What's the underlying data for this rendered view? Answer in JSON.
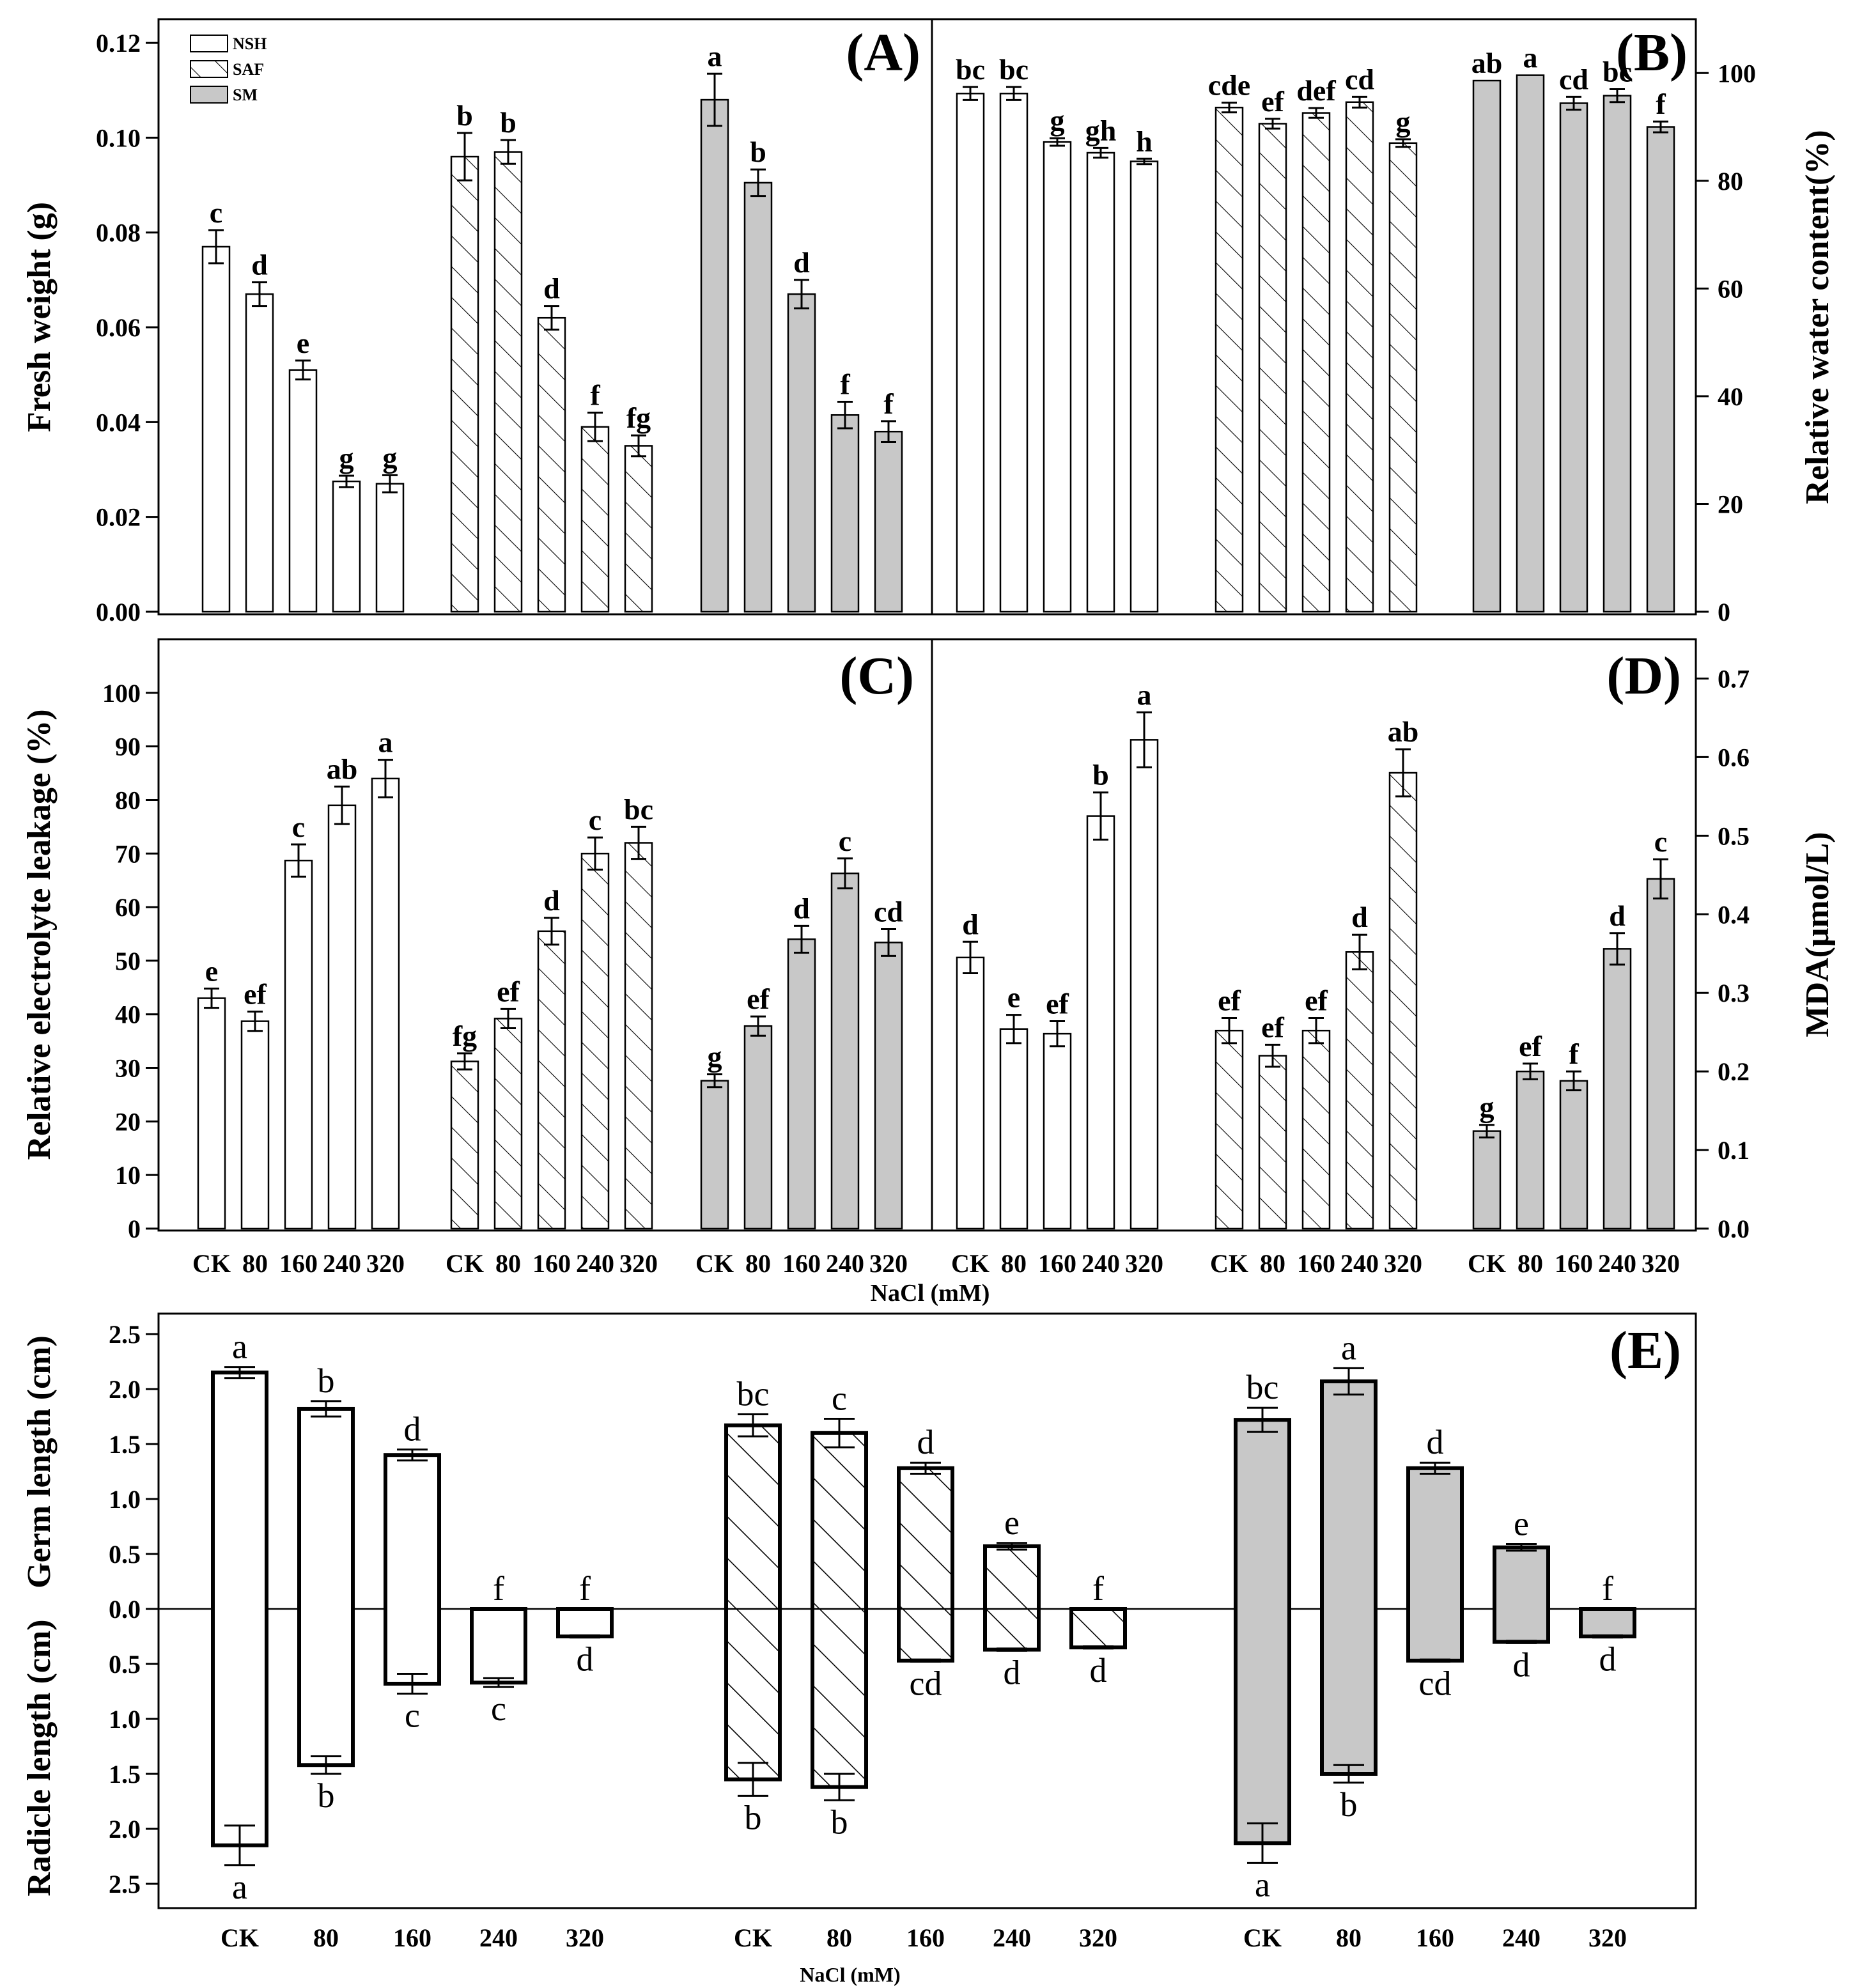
{
  "treatments": [
    "CK",
    "80",
    "160",
    "240",
    "320"
  ],
  "groups": [
    "NSH",
    "SAF",
    "SM"
  ],
  "legend": [
    "NSH",
    "SAF",
    "SM"
  ],
  "xlabel": "NaCl (mM)",
  "chart_data": [
    {
      "panel": "(A)",
      "type": "bar",
      "ylabel": "Fresh weight (g)",
      "ylim": [
        0,
        0.125
      ],
      "ticks": [
        "0.00",
        "0.02",
        "0.04",
        "0.06",
        "0.08",
        "0.10",
        "0.12"
      ],
      "series": [
        {
          "name": "NSH",
          "values": [
            0.077,
            0.067,
            0.051,
            0.0275,
            0.027
          ],
          "err": [
            0.0035,
            0.0025,
            0.002,
            0.0012,
            0.0018
          ],
          "sig": [
            "c",
            "d",
            "e",
            "g",
            "g"
          ]
        },
        {
          "name": "SAF",
          "values": [
            0.096,
            0.097,
            0.062,
            0.039,
            0.035
          ],
          "err": [
            0.005,
            0.0025,
            0.0025,
            0.003,
            0.0022
          ],
          "sig": [
            "b",
            "b",
            "d",
            "f",
            "fg"
          ]
        },
        {
          "name": "SM",
          "values": [
            0.108,
            0.0905,
            0.067,
            0.0415,
            0.038
          ],
          "err": [
            0.0055,
            0.0028,
            0.003,
            0.0028,
            0.0022
          ],
          "sig": [
            "a",
            "b",
            "d",
            "f",
            "f"
          ]
        }
      ]
    },
    {
      "panel": "(B)",
      "type": "bar",
      "ylabel": "Relative water content(%)",
      "ylim": [
        0,
        110
      ],
      "ticks": [
        "0",
        "20",
        "40",
        "60",
        "80",
        "100"
      ],
      "series": [
        {
          "name": "NSH",
          "values": [
            96.2,
            96.2,
            87.2,
            85.2,
            83.6
          ],
          "err": [
            1.2,
            1.2,
            0.7,
            0.9,
            0.5
          ],
          "sig": [
            "bc",
            "bc",
            "g",
            "gh",
            "h"
          ]
        },
        {
          "name": "SAF",
          "values": [
            93.6,
            90.6,
            92.6,
            94.6,
            87.0
          ],
          "err": [
            0.9,
            0.9,
            0.9,
            1.0,
            0.7
          ],
          "sig": [
            "cde",
            "ef",
            "def",
            "cd",
            "g"
          ]
        },
        {
          "name": "SM",
          "values": [
            98.6,
            99.6,
            94.4,
            95.8,
            90.0
          ],
          "err": [
            0,
            0,
            1.2,
            1.2,
            1.0
          ],
          "sig": [
            "ab",
            "a",
            "cd",
            "bc",
            "f"
          ]
        }
      ]
    },
    {
      "panel": "(C)",
      "type": "bar",
      "ylabel": "Relative electrolyte leakage (%)",
      "ylim": [
        0,
        110
      ],
      "ticks": [
        "0",
        "10",
        "20",
        "30",
        "40",
        "50",
        "60",
        "70",
        "80",
        "90",
        "100"
      ],
      "series": [
        {
          "name": "NSH",
          "values": [
            43,
            38.7,
            68.7,
            79,
            84
          ],
          "err": [
            1.8,
            1.8,
            3.0,
            3.5,
            3.5
          ],
          "sig": [
            "e",
            "ef",
            "c",
            "ab",
            "a"
          ]
        },
        {
          "name": "SAF",
          "values": [
            31.2,
            39.2,
            55.5,
            70,
            72
          ],
          "err": [
            1.5,
            1.8,
            2.5,
            3.0,
            3.0
          ],
          "sig": [
            "fg",
            "ef",
            "d",
            "c",
            "bc"
          ]
        },
        {
          "name": "SM",
          "values": [
            27.6,
            37.8,
            54,
            66.3,
            53.4
          ],
          "err": [
            1.2,
            1.8,
            2.5,
            2.8,
            2.5
          ],
          "sig": [
            "g",
            "ef",
            "d",
            "c",
            "cd"
          ]
        }
      ]
    },
    {
      "panel": "(D)",
      "type": "bar",
      "ylabel": "MDA(μmol/L)",
      "ylim": [
        0,
        0.75
      ],
      "ticks": [
        "0.0",
        "0.1",
        "0.2",
        "0.3",
        "0.4",
        "0.5",
        "0.6",
        "0.7"
      ],
      "series": [
        {
          "name": "NSH",
          "values": [
            0.345,
            0.254,
            0.248,
            0.525,
            0.622
          ],
          "err": [
            0.02,
            0.018,
            0.016,
            0.03,
            0.035
          ],
          "sig": [
            "d",
            "e",
            "ef",
            "b",
            "a"
          ]
        },
        {
          "name": "SAF",
          "values": [
            0.252,
            0.22,
            0.252,
            0.352,
            0.58
          ],
          "err": [
            0.016,
            0.014,
            0.016,
            0.022,
            0.03
          ],
          "sig": [
            "ef",
            "ef",
            "ef",
            "d",
            "ab"
          ]
        },
        {
          "name": "SM",
          "values": [
            0.124,
            0.2,
            0.188,
            0.356,
            0.445
          ],
          "err": [
            0.008,
            0.01,
            0.012,
            0.02,
            0.025
          ],
          "sig": [
            "g",
            "ef",
            "f",
            "d",
            "c"
          ]
        }
      ]
    },
    {
      "panel": "(E)",
      "type": "bar",
      "ylabel_top": "Germ length (cm)",
      "ylabel_bottom": "Radicle length (cm)",
      "ylim": [
        -2.55,
        2.55
      ],
      "ticks_top": [
        "0.0",
        "0.5",
        "1.0",
        "1.5",
        "2.0",
        "2.5"
      ],
      "ticks_bottom": [
        "0.5",
        "1.0",
        "1.5",
        "2.0",
        "2.5"
      ],
      "series": [
        {
          "name": "NSH",
          "germ": [
            2.15,
            1.82,
            1.4,
            0,
            0
          ],
          "germ_err": [
            0.05,
            0.07,
            0.05,
            0,
            0
          ],
          "germ_sig": [
            "a",
            "b",
            "d",
            "f",
            "f"
          ],
          "radicle": [
            2.15,
            1.42,
            0.68,
            0.67,
            0.25
          ],
          "radicle_err": [
            0.18,
            0.08,
            0.09,
            0.04,
            0.01
          ],
          "radicle_sig": [
            "a",
            "b",
            "c",
            "c",
            "d"
          ]
        },
        {
          "name": "SAF",
          "germ": [
            1.67,
            1.6,
            1.28,
            0.57,
            0
          ],
          "germ_err": [
            0.1,
            0.13,
            0.05,
            0.03,
            0
          ],
          "germ_sig": [
            "bc",
            "c",
            "d",
            "e",
            "f"
          ],
          "radicle": [
            1.55,
            1.62,
            0.47,
            0.37,
            0.35
          ],
          "radicle_err": [
            0.15,
            0.12,
            0.01,
            0.01,
            0.01
          ],
          "radicle_sig": [
            "b",
            "b",
            "cd",
            "d",
            "d"
          ]
        },
        {
          "name": "SM",
          "germ": [
            1.72,
            2.07,
            1.28,
            0.56,
            0
          ],
          "germ_err": [
            0.11,
            0.12,
            0.05,
            0.03,
            0
          ],
          "germ_sig": [
            "bc",
            "a",
            "d",
            "e",
            "f"
          ],
          "radicle": [
            2.13,
            1.5,
            0.47,
            0.3,
            0.25
          ],
          "radicle_err": [
            0.18,
            0.08,
            0.01,
            0.01,
            0.01
          ],
          "radicle_sig": [
            "a",
            "b",
            "cd",
            "d",
            "d"
          ]
        }
      ]
    }
  ]
}
